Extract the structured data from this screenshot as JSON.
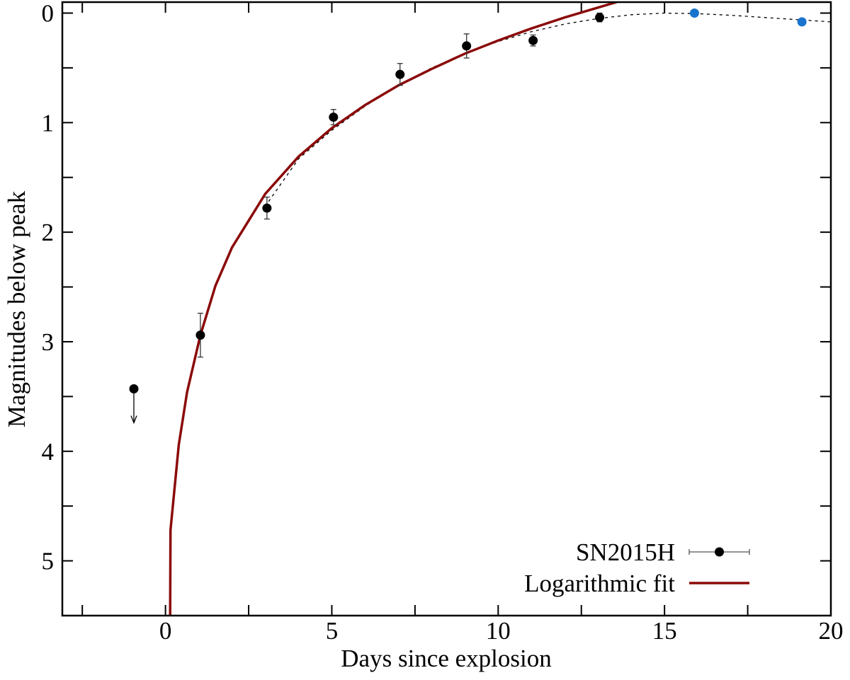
{
  "chart_data": {
    "type": "scatter",
    "xlabel": "Days since explosion",
    "ylabel": "Magnitudes below peak",
    "xlim": [
      -3.1,
      20
    ],
    "ylim": [
      -0.1,
      5.5
    ],
    "y_inverted": true,
    "xticks": [
      0,
      5,
      10,
      15,
      20
    ],
    "xminor": [
      -2.5,
      2.5,
      7.5,
      12.5,
      17.5
    ],
    "yticks": [
      0,
      1,
      2,
      3,
      4,
      5
    ],
    "yminor": [
      0.5,
      1.5,
      2.5,
      3.5,
      4.5,
      5.5
    ],
    "legend": "lower right",
    "series": [
      {
        "name": "SN2015H",
        "kind": "errorbar",
        "color": "#000000",
        "x": [
          -0.95,
          1.05,
          3.05,
          5.05,
          7.05,
          9.05,
          11.05,
          13.05
        ],
        "values": [
          3.43,
          2.94,
          1.78,
          0.95,
          0.56,
          0.3,
          0.25,
          0.04
        ],
        "errors": [
          0,
          0.2,
          0.1,
          0.07,
          0.1,
          0.11,
          0.05,
          0.04
        ],
        "upper_limits": [
          true,
          false,
          false,
          false,
          false,
          false,
          false,
          false
        ]
      },
      {
        "name": "Logarithmic fit",
        "kind": "line",
        "color": "#8b0a0a",
        "x": [
          0.14,
          0.15,
          0.4,
          0.65,
          1.05,
          1.5,
          2,
          3,
          4,
          5,
          6,
          7,
          8,
          9,
          10,
          11,
          12,
          13,
          13.56
        ],
        "values": [
          5.5,
          4.72,
          3.94,
          3.46,
          2.94,
          2.49,
          2.14,
          1.65,
          1.31,
          1.05,
          0.84,
          0.66,
          0.51,
          0.37,
          0.25,
          0.14,
          0.04,
          -0.05,
          -0.1
        ]
      },
      {
        "kind": "dashed",
        "color": "#000000",
        "x": [
          3.1,
          4,
          5,
          6,
          7,
          8,
          9,
          10,
          11,
          12,
          13,
          14,
          15,
          16,
          17,
          18,
          19,
          20
        ],
        "values": [
          1.72,
          1.33,
          1.07,
          0.85,
          0.66,
          0.5,
          0.37,
          0.26,
          0.17,
          0.1,
          0.05,
          0.015,
          0,
          0.005,
          0.02,
          0.04,
          0.06,
          0.08
        ]
      },
      {
        "kind": "points",
        "color": "#1874cd",
        "x": [
          15.9,
          19.13
        ],
        "values": [
          0.0,
          0.08
        ]
      }
    ]
  }
}
